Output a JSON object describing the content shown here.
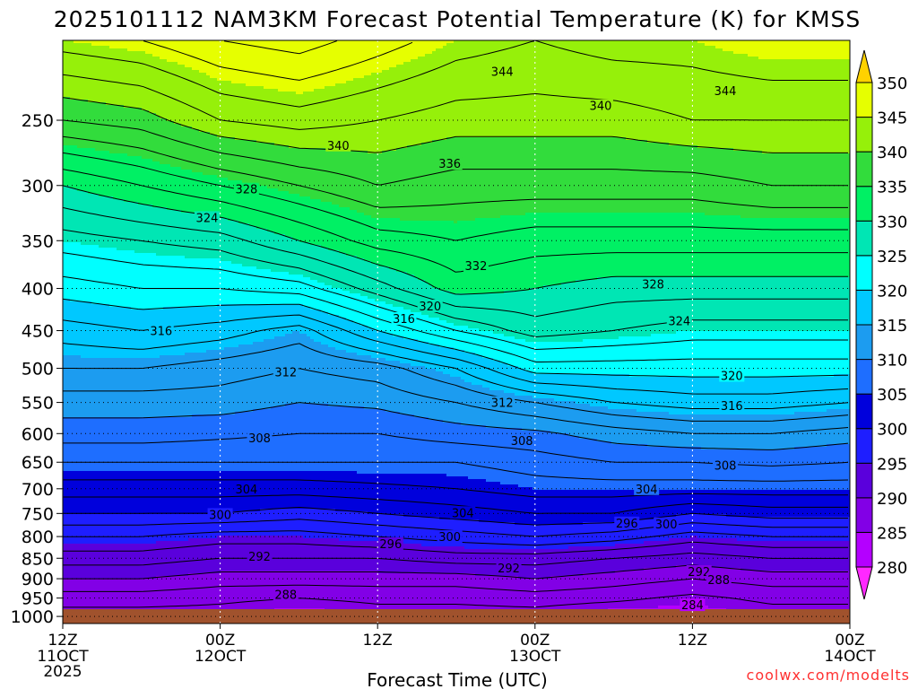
{
  "title": "2025101112 NAM3KM Forecast Potential Temperature (K) for KMSS",
  "footer": "coolwx.com/modelts",
  "chart_data": {
    "type": "heatmap",
    "title": "2025101112 NAM3KM Forecast Potential Temperature (K) for KMSS",
    "xlabel": "Forecast Time (UTC)",
    "ylabel": "",
    "x_ticks": [
      {
        "h": 0,
        "label": "12Z",
        "sub": "11OCT",
        "sub2": "2025"
      },
      {
        "h": 12,
        "label": "00Z",
        "sub": "12OCT",
        "sub2": ""
      },
      {
        "h": 24,
        "label": "12Z",
        "sub": "",
        "sub2": ""
      },
      {
        "h": 36,
        "label": "00Z",
        "sub": "13OCT",
        "sub2": ""
      },
      {
        "h": 48,
        "label": "12Z",
        "sub": "",
        "sub2": ""
      },
      {
        "h": 60,
        "label": "00Z",
        "sub": "14OCT",
        "sub2": ""
      }
    ],
    "xlim": [
      0,
      60
    ],
    "y_ticks": [
      250,
      300,
      350,
      400,
      450,
      500,
      550,
      600,
      650,
      700,
      750,
      800,
      850,
      900,
      950,
      1000
    ],
    "ylim_hpa": [
      200,
      1020
    ],
    "y_scale": "log",
    "colorbar": {
      "levels": [
        280,
        285,
        290,
        295,
        300,
        305,
        310,
        315,
        320,
        325,
        330,
        335,
        340,
        345,
        350
      ],
      "colors": [
        "#ff28ff",
        "#b400ff",
        "#8200e6",
        "#5a00dc",
        "#1e1eff",
        "#0000dc",
        "#1e6eff",
        "#1c9cf0",
        "#00c8ff",
        "#00ffff",
        "#00e6b4",
        "#00f064",
        "#32dc3c",
        "#96f00a",
        "#e6ff00",
        "#ffd200"
      ]
    },
    "profile_hpa": [
      200,
      250,
      300,
      350,
      400,
      450,
      500,
      550,
      600,
      650,
      700,
      750,
      800,
      850,
      900,
      950,
      1000
    ],
    "profiles": [
      {
        "h": 0,
        "theta": [
          345,
          338,
          330,
          325,
          321,
          317,
          314,
          311,
          309,
          306,
          303,
          300,
          296,
          293,
          290,
          287,
          285
        ]
      },
      {
        "h": 6,
        "theta": [
          346,
          339,
          332,
          326,
          322,
          318,
          314,
          311,
          309,
          306,
          303,
          300,
          296,
          293,
          290,
          287,
          285
        ]
      },
      {
        "h": 12,
        "theta": [
          348,
          342,
          334,
          327,
          322,
          317,
          313,
          311,
          308.5,
          306,
          303,
          300,
          295,
          292,
          289,
          286.5,
          285
        ]
      },
      {
        "h": 18,
        "theta": [
          349,
          343,
          336,
          330,
          323,
          315,
          312,
          310,
          308,
          306,
          303,
          299,
          295,
          292,
          289,
          286,
          284
        ]
      },
      {
        "h": 24,
        "theta": [
          347,
          342,
          338,
          333,
          327,
          320,
          313,
          310.5,
          308,
          306,
          303.5,
          300,
          296,
          292,
          289,
          286.5,
          285
        ]
      },
      {
        "h": 30,
        "theta": [
          345,
          341,
          337,
          334,
          331,
          324,
          316,
          312,
          309,
          306,
          304,
          301,
          297,
          293,
          289,
          286.5,
          285
        ]
      },
      {
        "h": 36,
        "theta": [
          344,
          341,
          337,
          333,
          330,
          327,
          321,
          314,
          309.5,
          307,
          305,
          302,
          298,
          293,
          290,
          287,
          285
        ]
      },
      {
        "h": 42,
        "theta": [
          345,
          341,
          337,
          333,
          329,
          326,
          321,
          316,
          311,
          308,
          305,
          302,
          297,
          292,
          289,
          286.5,
          284
        ]
      },
      {
        "h": 48,
        "theta": [
          345,
          342,
          337,
          333,
          329,
          325,
          321,
          317,
          312,
          308,
          305,
          300,
          295,
          291,
          288,
          285.5,
          284
        ]
      },
      {
        "h": 54,
        "theta": [
          346,
          342,
          338,
          333,
          329,
          325,
          321,
          317,
          312,
          308.5,
          305,
          301,
          296,
          292,
          289,
          286.5,
          285
        ]
      },
      {
        "h": 60,
        "theta": [
          346,
          342,
          338,
          333,
          329,
          325,
          321,
          316,
          311,
          308,
          305,
          301,
          296,
          292,
          289,
          286.5,
          285
        ]
      }
    ],
    "contour_labels": [
      {
        "text": "344",
        "h": 33.5,
        "p": 218
      },
      {
        "h": 50.5,
        "p": 230,
        "text": "344"
      },
      {
        "h": 41,
        "p": 240,
        "text": "340"
      },
      {
        "h": 21,
        "p": 268,
        "text": "340"
      },
      {
        "h": 29.5,
        "p": 282,
        "text": "336"
      },
      {
        "h": 14,
        "p": 303,
        "text": "328"
      },
      {
        "h": 11,
        "p": 328,
        "text": "324"
      },
      {
        "h": 31.5,
        "p": 375,
        "text": "332"
      },
      {
        "h": 45,
        "p": 395,
        "text": "328"
      },
      {
        "h": 28,
        "p": 420,
        "text": "320"
      },
      {
        "h": 26,
        "p": 435,
        "text": "316"
      },
      {
        "h": 47,
        "p": 438,
        "text": "324"
      },
      {
        "h": 7.5,
        "p": 450,
        "text": "316"
      },
      {
        "h": 17,
        "p": 505,
        "text": "312"
      },
      {
        "h": 51,
        "p": 510,
        "text": "320"
      },
      {
        "h": 33.5,
        "p": 550,
        "text": "312"
      },
      {
        "h": 51,
        "p": 555,
        "text": "316"
      },
      {
        "h": 15,
        "p": 607,
        "text": "308"
      },
      {
        "h": 35,
        "p": 612,
        "text": "308"
      },
      {
        "h": 50.5,
        "p": 655,
        "text": "308"
      },
      {
        "h": 14,
        "p": 700,
        "text": "304"
      },
      {
        "h": 44.5,
        "p": 700,
        "text": "304"
      },
      {
        "h": 30.5,
        "p": 748,
        "text": "304"
      },
      {
        "h": 12,
        "p": 752,
        "text": "300"
      },
      {
        "h": 43,
        "p": 770,
        "text": "296"
      },
      {
        "h": 46,
        "p": 772,
        "text": "300"
      },
      {
        "h": 29.5,
        "p": 800,
        "text": "300"
      },
      {
        "h": 25,
        "p": 816,
        "text": "296"
      },
      {
        "h": 15,
        "p": 845,
        "text": "292"
      },
      {
        "h": 34,
        "p": 873,
        "text": "292"
      },
      {
        "h": 48.5,
        "p": 882,
        "text": "292"
      },
      {
        "h": 50,
        "p": 902,
        "text": "288"
      },
      {
        "h": 17,
        "p": 940,
        "text": "288"
      },
      {
        "h": 48,
        "p": 968,
        "text": "284"
      }
    ]
  }
}
